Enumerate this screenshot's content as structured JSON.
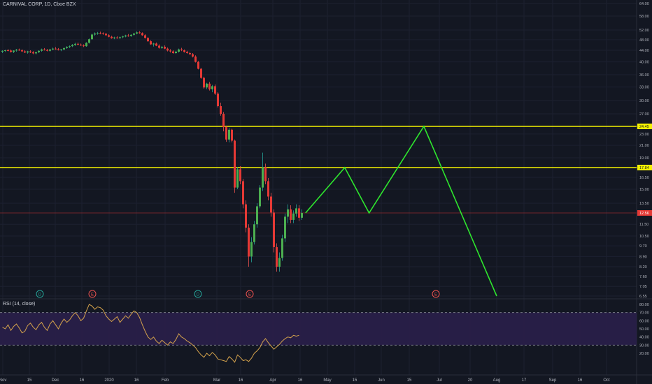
{
  "header": {
    "title": "CARNIVAL CORP, 1D, Cboe BZX"
  },
  "rsi": {
    "label": "RSI (14, close)",
    "ticks": [
      "80.00",
      "70.00",
      "60.00",
      "50.00",
      "40.00",
      "30.00",
      "20.00"
    ],
    "upper": 70,
    "lower": 30
  },
  "price_axis": {
    "ticks": [
      "64.00",
      "58.00",
      "52.00",
      "48.00",
      "44.00",
      "40.00",
      "36.00",
      "33.00",
      "30.00",
      "27.00",
      "23.00",
      "21.00",
      "19.00",
      "16.50",
      "15.00",
      "13.50",
      "11.50",
      "10.50",
      "9.70",
      "8.90",
      "8.20",
      "7.60",
      "7.05",
      "6.55"
    ]
  },
  "time_axis": {
    "ticks": [
      "Nov",
      "15",
      "Dec",
      "16",
      "2020",
      "16",
      "Feb",
      "Mar",
      "16",
      "Apr",
      "16",
      "May",
      "15",
      "Jun",
      "15",
      "Jul",
      "20",
      "Aug",
      "17",
      "Sep",
      "16",
      "Oct"
    ]
  },
  "markers": [
    {
      "kind": "dividend",
      "letter": "D"
    },
    {
      "kind": "earnings",
      "letter": "E"
    },
    {
      "kind": "dividend",
      "letter": "D"
    },
    {
      "kind": "earnings",
      "letter": "E"
    },
    {
      "kind": "earnings",
      "letter": "E"
    }
  ],
  "chart_data": {
    "type": "candlestick",
    "title": "CARNIVAL CORP, 1D, Cboe BZX",
    "horizontal_lines": [
      {
        "value": 24.45,
        "label": "24.45",
        "color": "#f5f200"
      },
      {
        "value": 17.84,
        "label": "17.84",
        "color": "#f5f200"
      },
      {
        "value": 12.56,
        "label": "12.56",
        "color": "#e53935"
      }
    ],
    "projection": {
      "color": "#2ee62e",
      "points": [
        {
          "x": "Apr 19",
          "y": 12.56
        },
        {
          "x": "May 11",
          "y": 17.84
        },
        {
          "x": "May 25",
          "y": 12.56
        },
        {
          "x": "Jun 23",
          "y": 24.45
        },
        {
          "x": "Aug 1",
          "y": 6.55
        }
      ]
    },
    "ylim": [
      6.55,
      64.0
    ],
    "candles": [
      [
        43.5,
        44,
        43,
        43.8
      ],
      [
        43.8,
        44.2,
        43.4,
        44
      ],
      [
        44,
        44.5,
        43.6,
        43.9
      ],
      [
        43.9,
        44.3,
        43.2,
        43.4
      ],
      [
        43.4,
        44,
        43,
        43.9
      ],
      [
        43.9,
        44.5,
        43.5,
        44.2
      ],
      [
        44.2,
        44.6,
        43.8,
        44
      ],
      [
        44,
        44.4,
        43.4,
        43.6
      ],
      [
        43.6,
        44,
        43,
        43.2
      ],
      [
        43.2,
        43.8,
        42.8,
        43.6
      ],
      [
        43.6,
        44,
        43,
        43.3
      ],
      [
        43.3,
        43.7,
        42.6,
        42.9
      ],
      [
        42.9,
        43.5,
        42.5,
        43.3
      ],
      [
        43.3,
        44,
        43,
        43.8
      ],
      [
        43.8,
        44.6,
        43.5,
        44.3
      ],
      [
        44.3,
        44.8,
        43.9,
        44.1
      ],
      [
        44.1,
        44.5,
        43.6,
        43.8
      ],
      [
        43.8,
        44.5,
        43.5,
        44.3
      ],
      [
        44.3,
        45,
        44,
        44.6
      ],
      [
        44.6,
        45.2,
        44.2,
        44.4
      ],
      [
        44.4,
        44.8,
        43.9,
        44.1
      ],
      [
        44.1,
        44.5,
        43.7,
        44.3
      ],
      [
        44.3,
        45,
        44,
        44.8
      ],
      [
        44.8,
        45.5,
        44.5,
        45.2
      ],
      [
        45.2,
        45.8,
        44.8,
        45.5
      ],
      [
        45.5,
        46.3,
        45.2,
        46
      ],
      [
        46,
        46.8,
        45.6,
        46.4
      ],
      [
        46.4,
        46.9,
        45.8,
        46.1
      ],
      [
        46.1,
        46.5,
        45.6,
        45.8
      ],
      [
        45.8,
        46.2,
        45.2,
        45.5
      ],
      [
        45.5,
        47,
        45.3,
        46.8
      ],
      [
        46.8,
        48.5,
        46.5,
        48.2
      ],
      [
        48.2,
        50.5,
        48,
        50.1
      ],
      [
        50.1,
        51,
        49.6,
        50.5
      ],
      [
        50.5,
        51.2,
        50,
        50.8
      ],
      [
        50.8,
        51.3,
        50.2,
        50.6
      ],
      [
        50.6,
        51,
        50,
        50.4
      ],
      [
        50.4,
        50.8,
        49.6,
        49.8
      ],
      [
        49.8,
        50.2,
        49,
        49.2
      ],
      [
        49.2,
        49.6,
        48.4,
        48.6
      ],
      [
        48.6,
        49.2,
        48.2,
        48.9
      ],
      [
        48.9,
        49.4,
        48.4,
        48.7
      ],
      [
        48.7,
        49.3,
        48.3,
        49
      ],
      [
        49,
        49.6,
        48.6,
        49.3
      ],
      [
        49.3,
        50,
        49,
        49.7
      ],
      [
        49.7,
        50.3,
        49.2,
        49.5
      ],
      [
        49.5,
        50.2,
        49.2,
        50
      ],
      [
        50,
        50.8,
        49.6,
        50.5
      ],
      [
        50.5,
        51.4,
        50.2,
        51
      ],
      [
        51,
        51.5,
        50.4,
        50.7
      ],
      [
        50.7,
        51,
        49.6,
        49.8
      ],
      [
        49.8,
        50.2,
        48.5,
        48.7
      ],
      [
        48.7,
        49,
        47.2,
        47.4
      ],
      [
        47.4,
        47.8,
        46,
        46.2
      ],
      [
        46.2,
        46.8,
        45.4,
        46.5
      ],
      [
        46.5,
        46.9,
        45.5,
        45.7
      ],
      [
        45.7,
        46.2,
        44.6,
        44.9
      ],
      [
        44.9,
        45.6,
        44.5,
        45.3
      ],
      [
        45.3,
        45.8,
        44.4,
        44.6
      ],
      [
        44.6,
        45,
        43.6,
        43.9
      ],
      [
        43.9,
        44.4,
        43.2,
        43.6
      ],
      [
        43.6,
        44,
        42.8,
        43
      ],
      [
        43,
        43.8,
        42.7,
        43.5
      ],
      [
        43.5,
        44.6,
        43.2,
        44.3
      ],
      [
        44.3,
        44.9,
        43.7,
        44
      ],
      [
        44,
        44.3,
        43.2,
        43.4
      ],
      [
        43.4,
        43.8,
        42.8,
        43
      ],
      [
        43,
        43.4,
        42.4,
        42.6
      ],
      [
        42.6,
        43,
        41.5,
        41.8
      ],
      [
        41.8,
        42.2,
        39.8,
        40
      ],
      [
        40,
        40.3,
        37.6,
        37.8
      ],
      [
        37.8,
        38,
        35,
        35.2
      ],
      [
        35.2,
        35.5,
        32.6,
        32.9
      ],
      [
        32.9,
        34,
        32.5,
        33.8
      ],
      [
        33.8,
        34.2,
        32.2,
        32.5
      ],
      [
        32.5,
        33.5,
        31.8,
        33.2
      ],
      [
        33.2,
        33.6,
        31.2,
        31.5
      ],
      [
        31.5,
        31.8,
        28.4,
        28.7
      ],
      [
        28.7,
        29.5,
        26.6,
        27
      ],
      [
        27,
        27.4,
        23.5,
        24.3
      ],
      [
        24.3,
        24.6,
        21.6,
        22
      ],
      [
        22,
        24.2,
        21.5,
        23.8
      ],
      [
        23.8,
        24,
        21.5,
        21.8
      ],
      [
        21.8,
        22,
        14.6,
        15.2
      ],
      [
        15.2,
        17.9,
        15,
        17.6
      ],
      [
        17.6,
        18,
        15.6,
        16
      ],
      [
        16,
        16.3,
        13,
        13.4
      ],
      [
        13.4,
        13.8,
        10.8,
        11.2
      ],
      [
        11.2,
        11.5,
        8.2,
        8.9
      ],
      [
        8.9,
        10.4,
        8.5,
        10
      ],
      [
        10,
        11.8,
        9.8,
        11.5
      ],
      [
        11.5,
        13.5,
        11.2,
        13.2
      ],
      [
        13.2,
        15.5,
        13,
        15.2
      ],
      [
        15.2,
        19.8,
        14.8,
        17.9
      ],
      [
        17.9,
        18.3,
        15.6,
        16
      ],
      [
        16,
        16.4,
        13.8,
        14.2
      ],
      [
        14.2,
        14.6,
        12.2,
        12.6
      ],
      [
        12.6,
        12.9,
        9.2,
        9.6
      ],
      [
        9.6,
        9.9,
        7.9,
        8.2
      ],
      [
        8.2,
        9.2,
        7.9,
        8.8
      ],
      [
        8.8,
        10.6,
        8.6,
        10.3
      ],
      [
        10.3,
        12.5,
        10,
        12.2
      ],
      [
        12.2,
        13.4,
        11.6,
        12.9
      ],
      [
        12.9,
        13.3,
        11.6,
        11.9
      ],
      [
        11.9,
        12.8,
        11.6,
        12.5
      ],
      [
        12.5,
        13.4,
        12.2,
        13
      ],
      [
        13,
        13.3,
        11.8,
        12.1
      ],
      [
        12.1,
        12.9,
        11.9,
        12.56
      ]
    ],
    "rsi_values": [
      52,
      50,
      55,
      48,
      53,
      56,
      51,
      45,
      47,
      54,
      57,
      52,
      49,
      55,
      58,
      52,
      48,
      56,
      60,
      55,
      50,
      57,
      62,
      58,
      61,
      66,
      70,
      66,
      60,
      63,
      72,
      80,
      78,
      74,
      77,
      76,
      73,
      66,
      62,
      59,
      62,
      65,
      58,
      62,
      66,
      63,
      68,
      72,
      70,
      64,
      55,
      47,
      40,
      37,
      40,
      35,
      32,
      36,
      33,
      30,
      34,
      32,
      37,
      44,
      40,
      38,
      35,
      33,
      30,
      27,
      22,
      18,
      15,
      20,
      17,
      21,
      18,
      13,
      12,
      11,
      10,
      16,
      13,
      9,
      18,
      15,
      11,
      12,
      10,
      14,
      20,
      23,
      27,
      34,
      38,
      33,
      29,
      25,
      28,
      31,
      35,
      38,
      40,
      39,
      42,
      41,
      42
    ]
  }
}
